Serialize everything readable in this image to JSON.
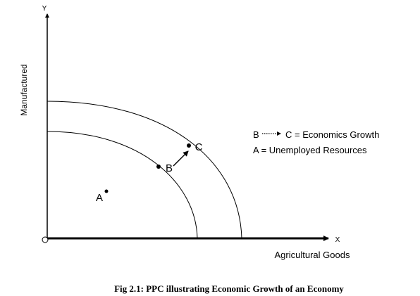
{
  "axes": {
    "y_letter": "Y",
    "x_letter": "X",
    "y_label": "Manufactured",
    "x_label": "Agricultural Goods",
    "origin_symbol": "O"
  },
  "points": {
    "a": "A",
    "b": "B",
    "c": "C"
  },
  "legend": {
    "line1_from": "B",
    "line1_rest": "C = Economics Growth",
    "line2": "A = Unemployed Resources"
  },
  "caption": "Fig 2.1: PPC illustrating Economic Growth of an Economy"
}
